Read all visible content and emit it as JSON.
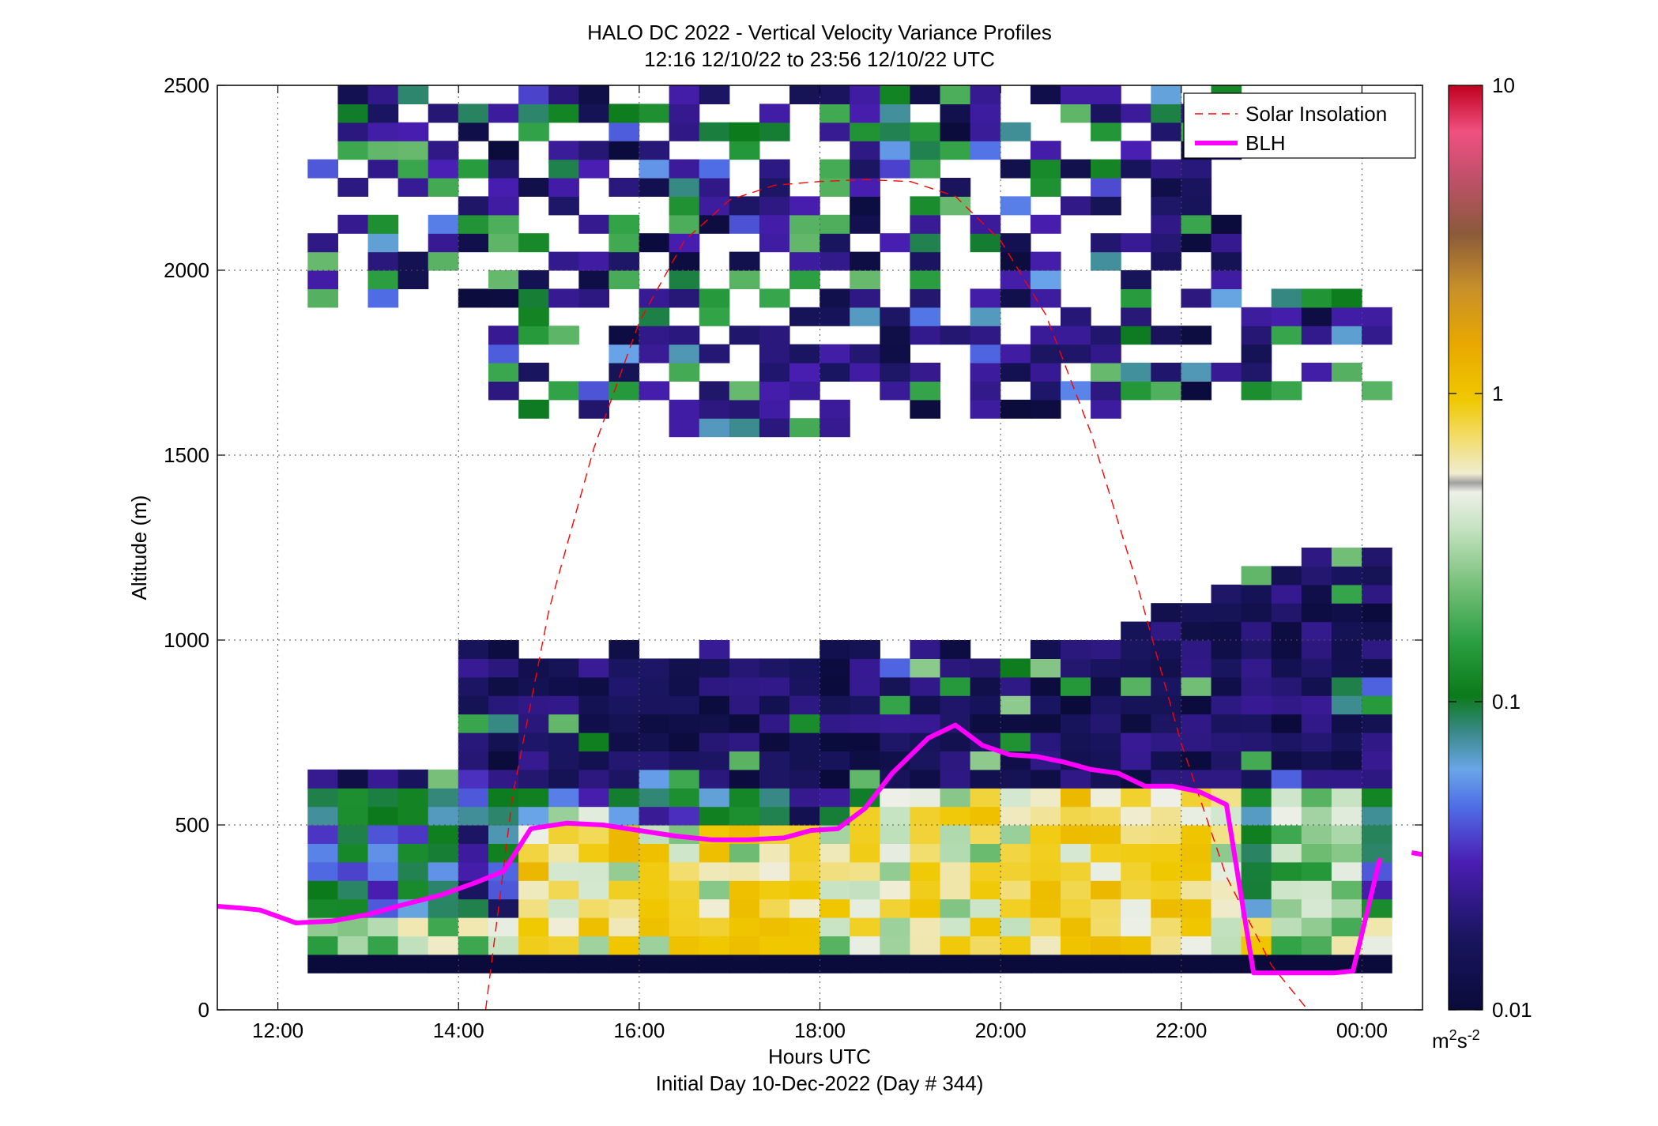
{
  "chart_data": {
    "type": "heatmap",
    "title": "HALO DC 2022 - Vertical Velocity Variance Profiles",
    "subtitle": "12:16 12/10/22 to 23:56 12/10/22  UTC",
    "xlabel": "Hours UTC",
    "xlabel2": "Initial Day 10-Dec-2022 (Day # 344)",
    "ylabel": "Altitude (m)",
    "xlim": [
      11.33,
      24.67
    ],
    "ylim": [
      0,
      2500
    ],
    "x_ticks": [
      12,
      14,
      16,
      18,
      20,
      22,
      24
    ],
    "x_tick_labels": [
      "12:00",
      "14:00",
      "16:00",
      "18:00",
      "20:00",
      "22:00",
      "00:00"
    ],
    "y_ticks": [
      0,
      500,
      1000,
      1500,
      2000,
      2500
    ],
    "y_tick_labels": [
      "0",
      "500",
      "1000",
      "1500",
      "2000",
      "2500"
    ],
    "grid": true,
    "legend_position": "top-right",
    "colorbar": {
      "scale": "log",
      "range": [
        0.01,
        10
      ],
      "tick_values": [
        0.01,
        0.1,
        1,
        10
      ],
      "tick_labels": [
        "0.01",
        "0.1",
        "1",
        "10"
      ],
      "unit_base": "m",
      "unit_exp1": "2",
      "unit_mid": "s",
      "unit_exp2": "-2"
    },
    "series": [
      {
        "name": "Solar Insolation",
        "style": "dashed",
        "color": "#ff0000",
        "x": [
          14.3,
          14.6,
          15.0,
          15.5,
          16.0,
          16.5,
          17.0,
          17.5,
          18.0,
          18.5,
          19.0,
          19.5,
          20.0,
          20.5,
          21.0,
          21.5,
          22.0,
          22.5,
          23.0,
          23.4
        ],
        "y": [
          0,
          580,
          1080,
          1520,
          1860,
          2080,
          2190,
          2230,
          2240,
          2245,
          2240,
          2200,
          2080,
          1880,
          1560,
          1160,
          720,
          360,
          120,
          0
        ]
      },
      {
        "name": "BLH",
        "style": "solid",
        "color": "#ff00ff",
        "x": [
          11.33,
          11.6,
          11.8,
          12.2,
          12.6,
          13.0,
          13.4,
          13.8,
          14.2,
          14.5,
          14.8,
          15.2,
          15.6,
          16.0,
          16.4,
          16.8,
          17.2,
          17.6,
          17.9,
          18.2,
          18.5,
          18.8,
          19.2,
          19.5,
          19.8,
          20.1,
          20.4,
          20.7,
          21.0,
          21.3,
          21.6,
          21.9,
          22.2,
          22.5,
          22.8,
          23.1,
          23.4,
          23.7,
          23.9,
          24.2
        ],
        "y": [
          280,
          275,
          270,
          235,
          240,
          258,
          285,
          310,
          345,
          375,
          490,
          505,
          500,
          485,
          470,
          460,
          460,
          465,
          485,
          490,
          545,
          640,
          735,
          770,
          715,
          690,
          685,
          670,
          650,
          640,
          605,
          605,
          590,
          555,
          100,
          100,
          100,
          100,
          105,
          410
        ]
      },
      {
        "name": "",
        "style": "solid",
        "color": "#ff00ff",
        "x": [
          24.55,
          24.67
        ],
        "y": [
          425,
          420
        ]
      }
    ],
    "heatmap_note": "Color cells are vertical velocity variance (m^2 s^-2) per 20-min time bin and 50 m altitude bin, 12:16–23:56 UTC; values shown by the log colour scale.",
    "heatmap_regions": [
      {
        "t": [
          12.33,
          24.0
        ],
        "z": [
          100,
          150
        ],
        "value": 0.01
      },
      {
        "t": [
          12.33,
          24.0
        ],
        "z": [
          150,
          600
        ],
        "value": 0.35
      },
      {
        "t": [
          12.33,
          24.0
        ],
        "z": [
          600,
          1250
        ],
        "value": 0.02
      },
      {
        "t": [
          12.33,
          24.0
        ],
        "z": [
          1450,
          2500
        ],
        "value": 0.03
      }
    ]
  }
}
